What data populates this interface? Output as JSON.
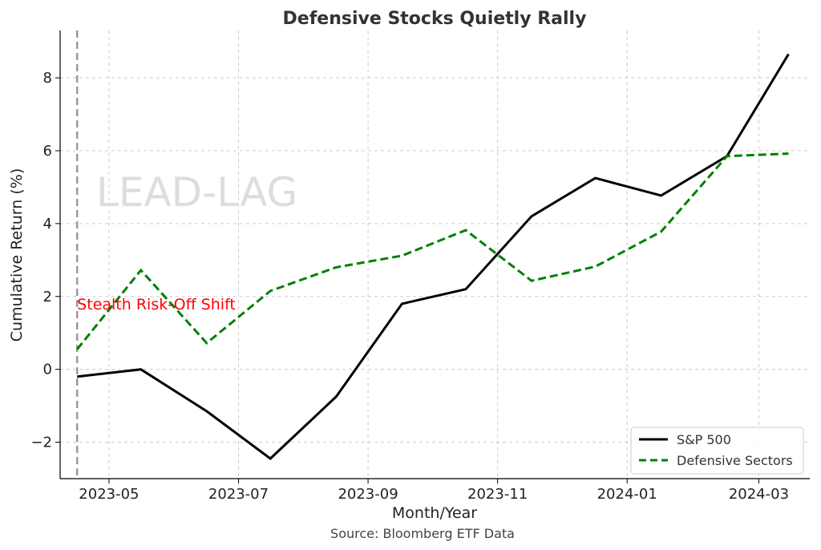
{
  "chart_data": {
    "type": "line",
    "title": "Defensive Stocks Quietly Rally",
    "xlabel": "Month/Year",
    "ylabel": "Cumulative Return (%)",
    "source": "Source: Bloomberg ETF Data",
    "watermark": "LEAD-LAG",
    "x": [
      "2023-03-31",
      "2023-04-30",
      "2023-05-31",
      "2023-06-30",
      "2023-07-31",
      "2023-08-31",
      "2023-09-30",
      "2023-10-31",
      "2023-11-30",
      "2023-12-31",
      "2024-01-31",
      "2024-02-29"
    ],
    "xlim": [
      "2023-03-23",
      "2024-03-10"
    ],
    "ylim": [
      -3.0,
      9.3
    ],
    "x_ticks": [
      {
        "value": "2023-04-15",
        "label": "2023-05"
      },
      {
        "value": "2023-06-15",
        "label": "2023-07"
      },
      {
        "value": "2023-08-15",
        "label": "2023-09"
      },
      {
        "value": "2023-10-15",
        "label": "2023-11"
      },
      {
        "value": "2023-12-15",
        "label": "2024-01"
      },
      {
        "value": "2024-02-15",
        "label": "2024-03"
      }
    ],
    "y_ticks": [
      -2,
      0,
      2,
      4,
      6,
      8
    ],
    "y_tick_labels": [
      "−2",
      "0",
      "2",
      "4",
      "6",
      "8"
    ],
    "grid": true,
    "legend_position": "bottom-right",
    "series": [
      {
        "name": "S&P 500",
        "color": "#000000",
        "style": "solid",
        "values": [
          -0.2,
          0.0,
          -1.15,
          -2.45,
          -0.75,
          1.8,
          2.2,
          4.2,
          5.25,
          4.77,
          5.85,
          8.65
        ]
      },
      {
        "name": "Defensive Sectors",
        "color": "#008000",
        "style": "dashed",
        "values": [
          0.55,
          2.72,
          0.72,
          2.15,
          2.8,
          3.12,
          3.82,
          2.43,
          2.82,
          3.78,
          5.85,
          5.92
        ]
      }
    ],
    "annotations": [
      {
        "text": "Stealth Risk-Off Shift",
        "x": "2023-03-31",
        "y": 1.8,
        "color": "#ff0000"
      }
    ],
    "vline": {
      "x": "2023-03-31",
      "color": "#999999",
      "style": "dashed"
    }
  }
}
